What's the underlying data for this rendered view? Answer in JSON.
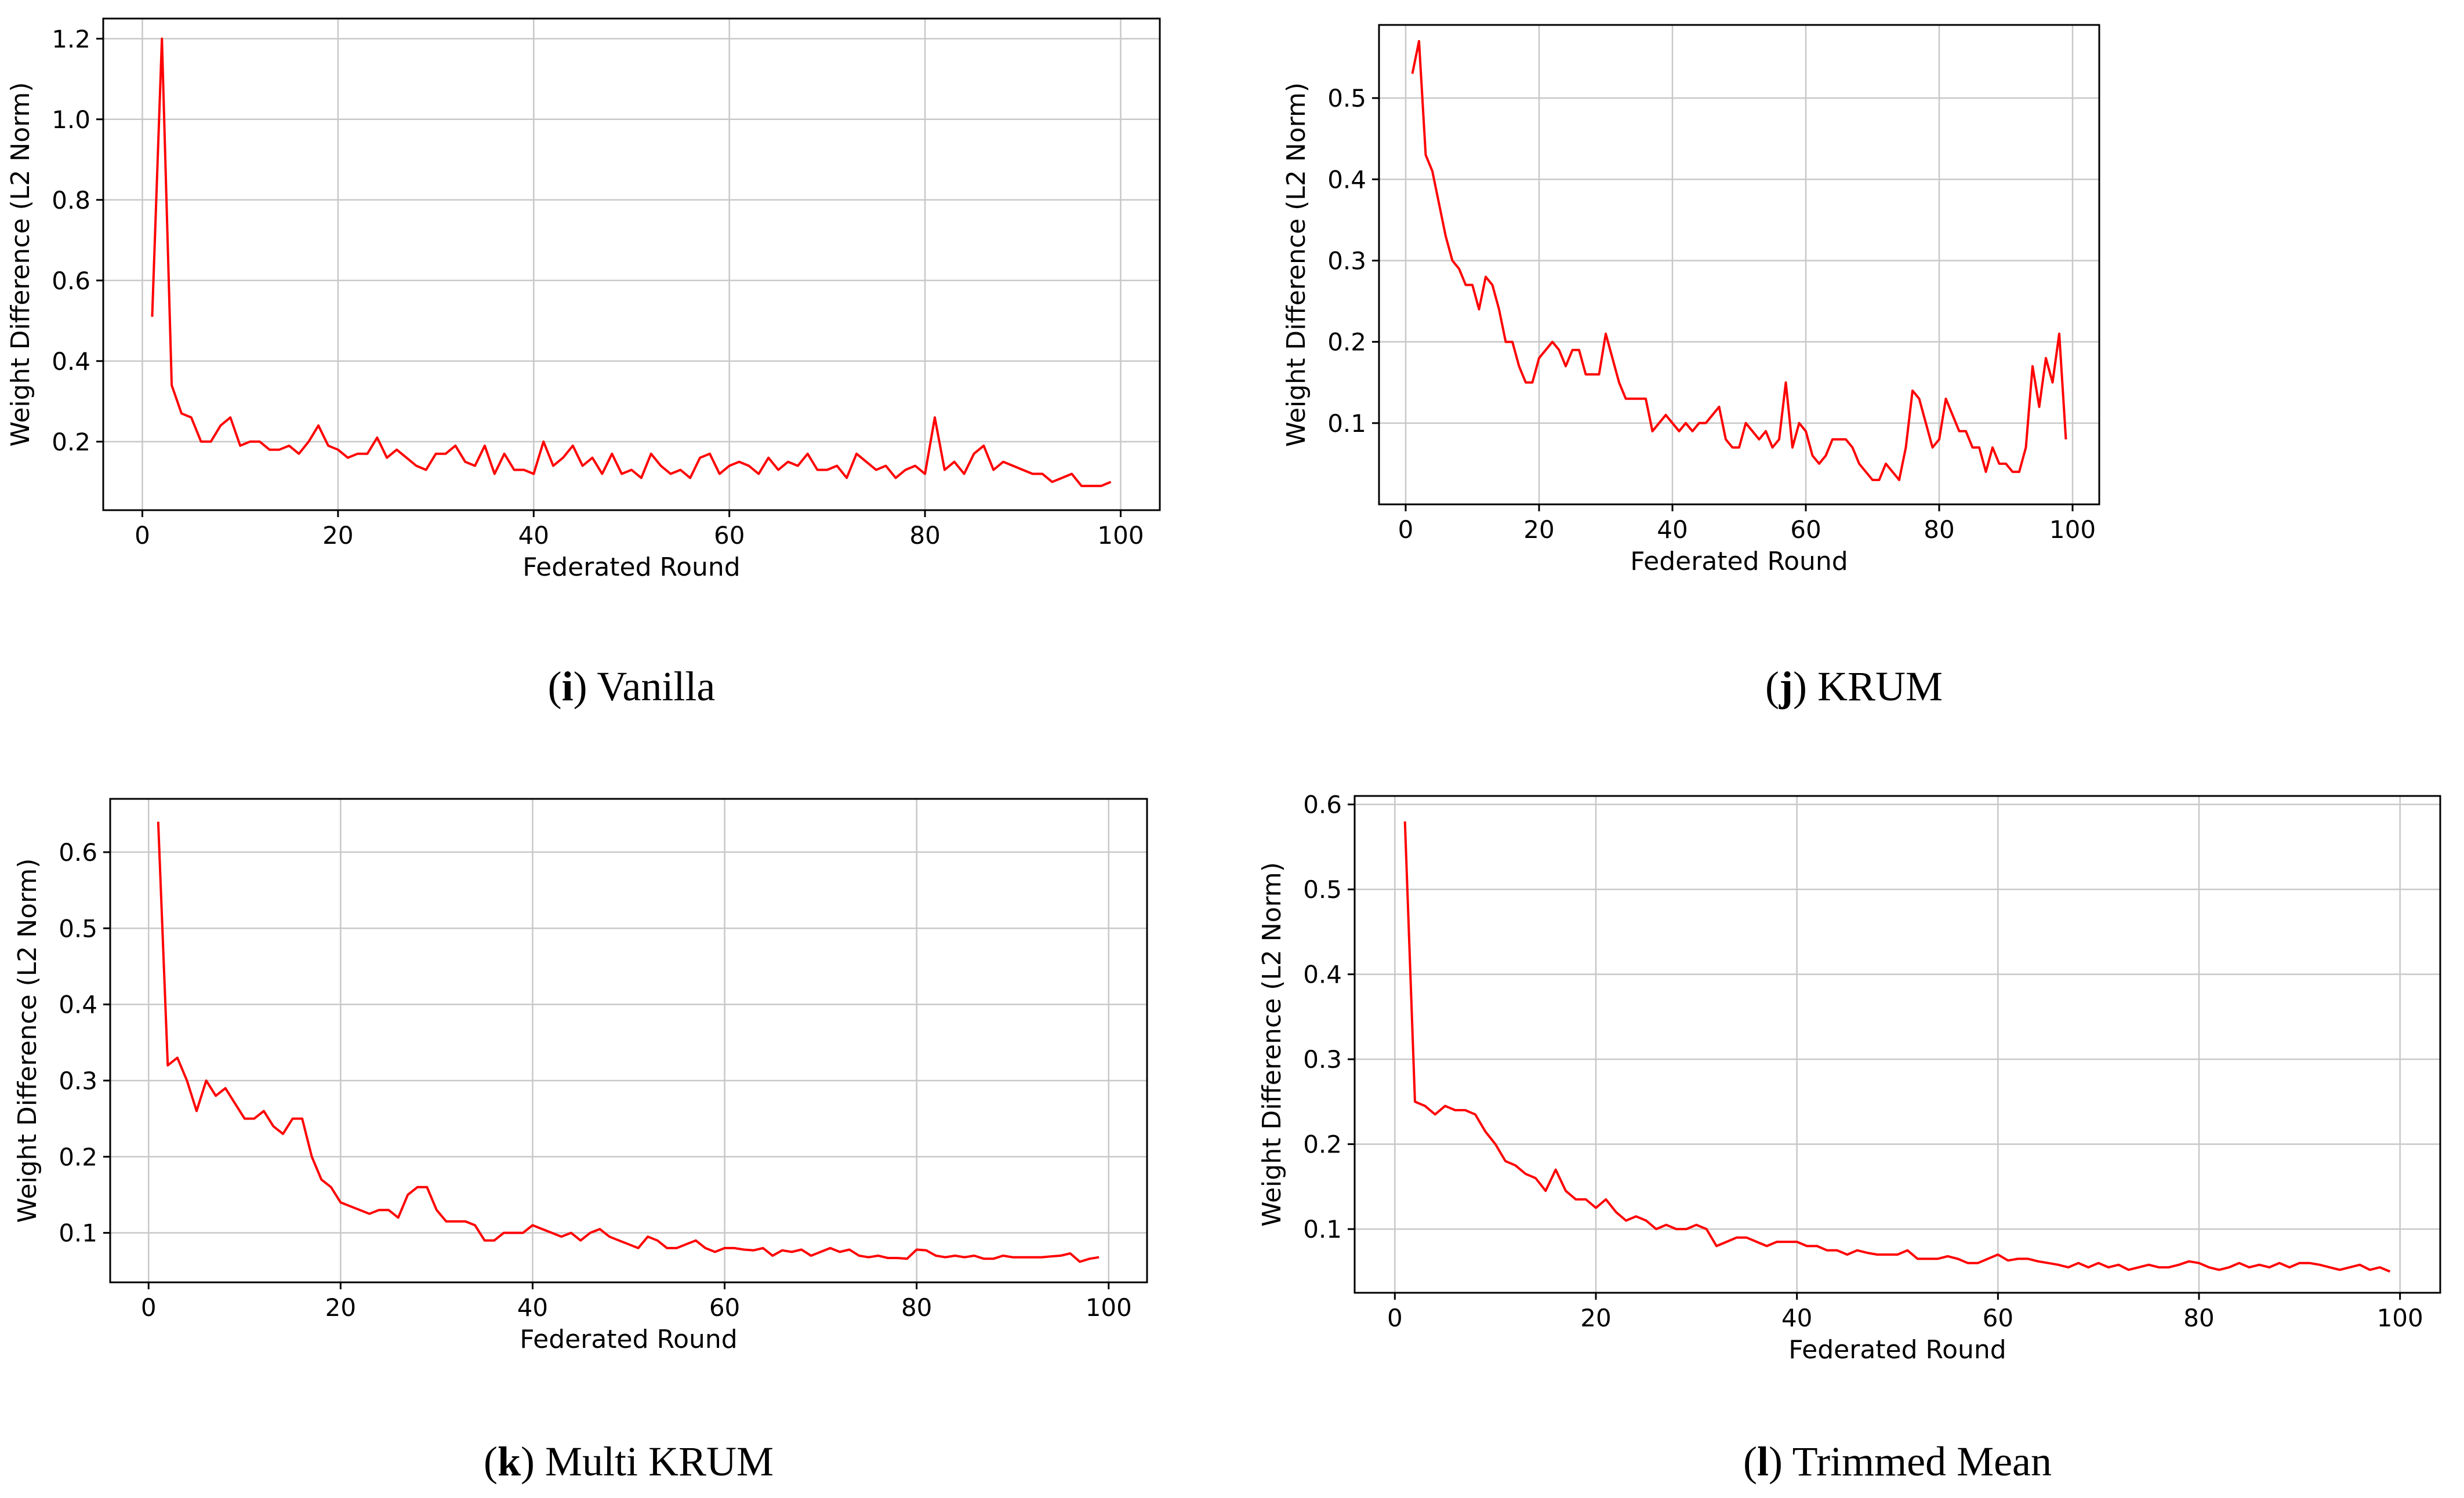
{
  "chart_data": [
    {
      "type": "line",
      "caption_letter": "i",
      "caption_text": "Vanilla",
      "xlabel": "Federated Round",
      "ylabel": "Weight Difference (L2 Norm)",
      "xlim": [
        -4,
        104
      ],
      "ylim": [
        0.03,
        1.25
      ],
      "xticks": [
        0,
        20,
        40,
        60,
        80,
        100
      ],
      "xtick_labels": [
        "0",
        "20",
        "40",
        "60",
        "80",
        "100"
      ],
      "yticks": [
        0.2,
        0.4,
        0.6,
        0.8,
        1.0,
        1.2
      ],
      "ytick_labels": [
        "0.2",
        "0.4",
        "0.6",
        "0.8",
        "1.0",
        "1.2"
      ],
      "grid": true,
      "series": [
        {
          "name": "Vanilla",
          "color": "#ff0000",
          "x": [
            1,
            2,
            3,
            4,
            5,
            6,
            7,
            8,
            9,
            10,
            11,
            12,
            13,
            14,
            15,
            16,
            17,
            18,
            19,
            20,
            21,
            22,
            23,
            24,
            25,
            26,
            27,
            28,
            29,
            30,
            31,
            32,
            33,
            34,
            35,
            36,
            37,
            38,
            39,
            40,
            41,
            42,
            43,
            44,
            45,
            46,
            47,
            48,
            49,
            50,
            51,
            52,
            53,
            54,
            55,
            56,
            57,
            58,
            59,
            60,
            61,
            62,
            63,
            64,
            65,
            66,
            67,
            68,
            69,
            70,
            71,
            72,
            73,
            74,
            75,
            76,
            77,
            78,
            79,
            80,
            81,
            82,
            83,
            84,
            85,
            86,
            87,
            88,
            89,
            90,
            91,
            92,
            93,
            94,
            95,
            96,
            97,
            98,
            99
          ],
          "values": [
            0.51,
            1.2,
            0.34,
            0.27,
            0.26,
            0.2,
            0.2,
            0.24,
            0.26,
            0.19,
            0.2,
            0.2,
            0.18,
            0.18,
            0.19,
            0.17,
            0.2,
            0.24,
            0.19,
            0.18,
            0.16,
            0.17,
            0.17,
            0.21,
            0.16,
            0.18,
            0.16,
            0.14,
            0.13,
            0.17,
            0.17,
            0.19,
            0.15,
            0.14,
            0.19,
            0.12,
            0.17,
            0.13,
            0.13,
            0.12,
            0.2,
            0.14,
            0.16,
            0.19,
            0.14,
            0.16,
            0.12,
            0.17,
            0.12,
            0.13,
            0.11,
            0.17,
            0.14,
            0.12,
            0.13,
            0.11,
            0.16,
            0.17,
            0.12,
            0.14,
            0.15,
            0.14,
            0.12,
            0.16,
            0.13,
            0.15,
            0.14,
            0.17,
            0.13,
            0.13,
            0.14,
            0.11,
            0.17,
            0.15,
            0.13,
            0.14,
            0.11,
            0.13,
            0.14,
            0.12,
            0.26,
            0.13,
            0.15,
            0.12,
            0.17,
            0.19,
            0.13,
            0.15,
            0.14,
            0.13,
            0.12,
            0.12,
            0.1,
            0.11,
            0.12,
            0.09,
            0.09,
            0.09,
            0.1
          ]
        }
      ]
    },
    {
      "type": "line",
      "caption_letter": "j",
      "caption_text": "KRUM",
      "xlabel": "Federated Round",
      "ylabel": "Weight Difference (L2 Norm)",
      "xlim": [
        -4,
        104
      ],
      "ylim": [
        0.0,
        0.59
      ],
      "xticks": [
        0,
        20,
        40,
        60,
        80,
        100
      ],
      "xtick_labels": [
        "0",
        "20",
        "40",
        "60",
        "80",
        "100"
      ],
      "yticks": [
        0.1,
        0.2,
        0.3,
        0.4,
        0.5
      ],
      "ytick_labels": [
        "0.1",
        "0.2",
        "0.3",
        "0.4",
        "0.5"
      ],
      "grid": true,
      "series": [
        {
          "name": "KRUM",
          "color": "#ff0000",
          "x": [
            1,
            2,
            3,
            4,
            5,
            6,
            7,
            8,
            9,
            10,
            11,
            12,
            13,
            14,
            15,
            16,
            17,
            18,
            19,
            20,
            21,
            22,
            23,
            24,
            25,
            26,
            27,
            28,
            29,
            30,
            31,
            32,
            33,
            34,
            35,
            36,
            37,
            38,
            39,
            40,
            41,
            42,
            43,
            44,
            45,
            46,
            47,
            48,
            49,
            50,
            51,
            52,
            53,
            54,
            55,
            56,
            57,
            58,
            59,
            60,
            61,
            62,
            63,
            64,
            65,
            66,
            67,
            68,
            69,
            70,
            71,
            72,
            73,
            74,
            75,
            76,
            77,
            78,
            79,
            80,
            81,
            82,
            83,
            84,
            85,
            86,
            87,
            88,
            89,
            90,
            91,
            92,
            93,
            94,
            95,
            96,
            97,
            98,
            99
          ],
          "values": [
            0.53,
            0.57,
            0.43,
            0.41,
            0.37,
            0.33,
            0.3,
            0.29,
            0.27,
            0.27,
            0.24,
            0.28,
            0.27,
            0.24,
            0.2,
            0.2,
            0.17,
            0.15,
            0.15,
            0.18,
            0.19,
            0.2,
            0.19,
            0.17,
            0.19,
            0.19,
            0.16,
            0.16,
            0.16,
            0.21,
            0.18,
            0.15,
            0.13,
            0.13,
            0.13,
            0.13,
            0.09,
            0.1,
            0.11,
            0.1,
            0.09,
            0.1,
            0.09,
            0.1,
            0.1,
            0.11,
            0.12,
            0.08,
            0.07,
            0.07,
            0.1,
            0.09,
            0.08,
            0.09,
            0.07,
            0.08,
            0.15,
            0.07,
            0.1,
            0.09,
            0.06,
            0.05,
            0.06,
            0.08,
            0.08,
            0.08,
            0.07,
            0.05,
            0.04,
            0.03,
            0.03,
            0.05,
            0.04,
            0.03,
            0.07,
            0.14,
            0.13,
            0.1,
            0.07,
            0.08,
            0.13,
            0.11,
            0.09,
            0.09,
            0.07,
            0.07,
            0.04,
            0.07,
            0.05,
            0.05,
            0.04,
            0.04,
            0.07,
            0.17,
            0.12,
            0.18,
            0.15,
            0.21,
            0.08
          ]
        }
      ]
    },
    {
      "type": "line",
      "caption_letter": "k",
      "caption_text": "Multi KRUM",
      "xlabel": "Federated Round",
      "ylabel": "Weight Difference (L2 Norm)",
      "xlim": [
        -4,
        104
      ],
      "ylim": [
        0.035,
        0.67
      ],
      "xticks": [
        0,
        20,
        40,
        60,
        80,
        100
      ],
      "xtick_labels": [
        "0",
        "20",
        "40",
        "60",
        "80",
        "100"
      ],
      "yticks": [
        0.1,
        0.2,
        0.3,
        0.4,
        0.5,
        0.6
      ],
      "ytick_labels": [
        "0.1",
        "0.2",
        "0.3",
        "0.4",
        "0.5",
        "0.6"
      ],
      "grid": true,
      "series": [
        {
          "name": "Multi KRUM",
          "color": "#ff0000",
          "x": [
            1,
            2,
            3,
            4,
            5,
            6,
            7,
            8,
            9,
            10,
            11,
            12,
            13,
            14,
            15,
            16,
            17,
            18,
            19,
            20,
            21,
            22,
            23,
            24,
            25,
            26,
            27,
            28,
            29,
            30,
            31,
            32,
            33,
            34,
            35,
            36,
            37,
            38,
            39,
            40,
            41,
            42,
            43,
            44,
            45,
            46,
            47,
            48,
            49,
            50,
            51,
            52,
            53,
            54,
            55,
            56,
            57,
            58,
            59,
            60,
            61,
            62,
            63,
            64,
            65,
            66,
            67,
            68,
            69,
            70,
            71,
            72,
            73,
            74,
            75,
            76,
            77,
            78,
            79,
            80,
            81,
            82,
            83,
            84,
            85,
            86,
            87,
            88,
            89,
            90,
            91,
            92,
            93,
            94,
            95,
            96,
            97,
            98,
            99
          ],
          "values": [
            0.64,
            0.32,
            0.33,
            0.3,
            0.26,
            0.3,
            0.28,
            0.29,
            0.27,
            0.25,
            0.25,
            0.26,
            0.24,
            0.23,
            0.25,
            0.25,
            0.2,
            0.17,
            0.16,
            0.14,
            0.135,
            0.13,
            0.125,
            0.13,
            0.13,
            0.12,
            0.15,
            0.16,
            0.16,
            0.13,
            0.115,
            0.115,
            0.115,
            0.11,
            0.09,
            0.09,
            0.1,
            0.1,
            0.1,
            0.11,
            0.105,
            0.1,
            0.095,
            0.1,
            0.09,
            0.1,
            0.105,
            0.095,
            0.09,
            0.085,
            0.08,
            0.095,
            0.09,
            0.08,
            0.08,
            0.085,
            0.09,
            0.08,
            0.075,
            0.08,
            0.08,
            0.078,
            0.077,
            0.08,
            0.07,
            0.077,
            0.075,
            0.078,
            0.07,
            0.075,
            0.08,
            0.075,
            0.078,
            0.07,
            0.068,
            0.07,
            0.067,
            0.067,
            0.066,
            0.078,
            0.077,
            0.07,
            0.068,
            0.07,
            0.068,
            0.07,
            0.066,
            0.066,
            0.07,
            0.068,
            0.068,
            0.068,
            0.068,
            0.069,
            0.07,
            0.073,
            0.062,
            0.066,
            0.068
          ]
        }
      ]
    },
    {
      "type": "line",
      "caption_letter": "l",
      "caption_text": "Trimmed Mean",
      "xlabel": "Federated Round",
      "ylabel": "Weight Difference (L2 Norm)",
      "xlim": [
        -4,
        104
      ],
      "ylim": [
        0.025,
        0.61
      ],
      "xticks": [
        0,
        20,
        40,
        60,
        80,
        100
      ],
      "xtick_labels": [
        "0",
        "20",
        "40",
        "60",
        "80",
        "100"
      ],
      "yticks": [
        0.1,
        0.2,
        0.3,
        0.4,
        0.5,
        0.6
      ],
      "ytick_labels": [
        "0.1",
        "0.2",
        "0.3",
        "0.4",
        "0.5",
        "0.6"
      ],
      "grid": true,
      "series": [
        {
          "name": "Trimmed Mean",
          "color": "#ff0000",
          "x": [
            1,
            2,
            3,
            4,
            5,
            6,
            7,
            8,
            9,
            10,
            11,
            12,
            13,
            14,
            15,
            16,
            17,
            18,
            19,
            20,
            21,
            22,
            23,
            24,
            25,
            26,
            27,
            28,
            29,
            30,
            31,
            32,
            33,
            34,
            35,
            36,
            37,
            38,
            39,
            40,
            41,
            42,
            43,
            44,
            45,
            46,
            47,
            48,
            49,
            50,
            51,
            52,
            53,
            54,
            55,
            56,
            57,
            58,
            59,
            60,
            61,
            62,
            63,
            64,
            65,
            66,
            67,
            68,
            69,
            70,
            71,
            72,
            73,
            74,
            75,
            76,
            77,
            78,
            79,
            80,
            81,
            82,
            83,
            84,
            85,
            86,
            87,
            88,
            89,
            90,
            91,
            92,
            93,
            94,
            95,
            96,
            97,
            98,
            99
          ],
          "values": [
            0.58,
            0.25,
            0.245,
            0.235,
            0.245,
            0.24,
            0.24,
            0.235,
            0.215,
            0.2,
            0.18,
            0.175,
            0.165,
            0.16,
            0.145,
            0.17,
            0.145,
            0.135,
            0.135,
            0.125,
            0.135,
            0.12,
            0.11,
            0.115,
            0.11,
            0.1,
            0.105,
            0.1,
            0.1,
            0.105,
            0.1,
            0.08,
            0.085,
            0.09,
            0.09,
            0.085,
            0.08,
            0.085,
            0.085,
            0.085,
            0.08,
            0.08,
            0.075,
            0.075,
            0.07,
            0.075,
            0.072,
            0.07,
            0.07,
            0.07,
            0.075,
            0.065,
            0.065,
            0.065,
            0.068,
            0.065,
            0.06,
            0.06,
            0.065,
            0.07,
            0.063,
            0.065,
            0.065,
            0.062,
            0.06,
            0.058,
            0.055,
            0.06,
            0.055,
            0.06,
            0.055,
            0.058,
            0.052,
            0.055,
            0.058,
            0.055,
            0.055,
            0.058,
            0.062,
            0.06,
            0.055,
            0.052,
            0.055,
            0.06,
            0.055,
            0.058,
            0.055,
            0.06,
            0.055,
            0.06,
            0.06,
            0.058,
            0.055,
            0.052,
            0.055,
            0.058,
            0.052,
            0.055,
            0.05
          ]
        }
      ]
    }
  ]
}
